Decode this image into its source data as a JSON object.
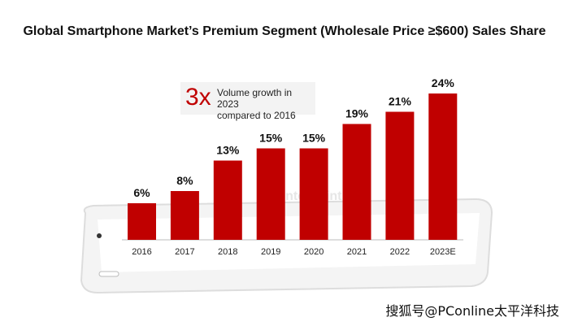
{
  "chart_data": {
    "type": "bar",
    "title": "Global Smartphone Market’s Premium Segment (Wholesale Price ≥$600) Sales Share",
    "categories": [
      "2016",
      "2017",
      "2018",
      "2019",
      "2020",
      "2021",
      "2022",
      "2023E"
    ],
    "values": [
      6,
      8,
      13,
      15,
      15,
      19,
      21,
      24
    ],
    "data_labels": [
      "6%",
      "8%",
      "13%",
      "15%",
      "15%",
      "19%",
      "21%",
      "24%"
    ],
    "xlabel": "",
    "ylabel": "",
    "ylim": [
      0,
      24
    ],
    "grid": false,
    "bar_color": "#c00000",
    "annotation": {
      "big": "3x",
      "line1": "Volume growth in 2023",
      "line2": "compared to 2016"
    }
  },
  "watermarks": {
    "logo": "Counterpoint",
    "source": "搜狐号@PConline太平洋科技"
  }
}
